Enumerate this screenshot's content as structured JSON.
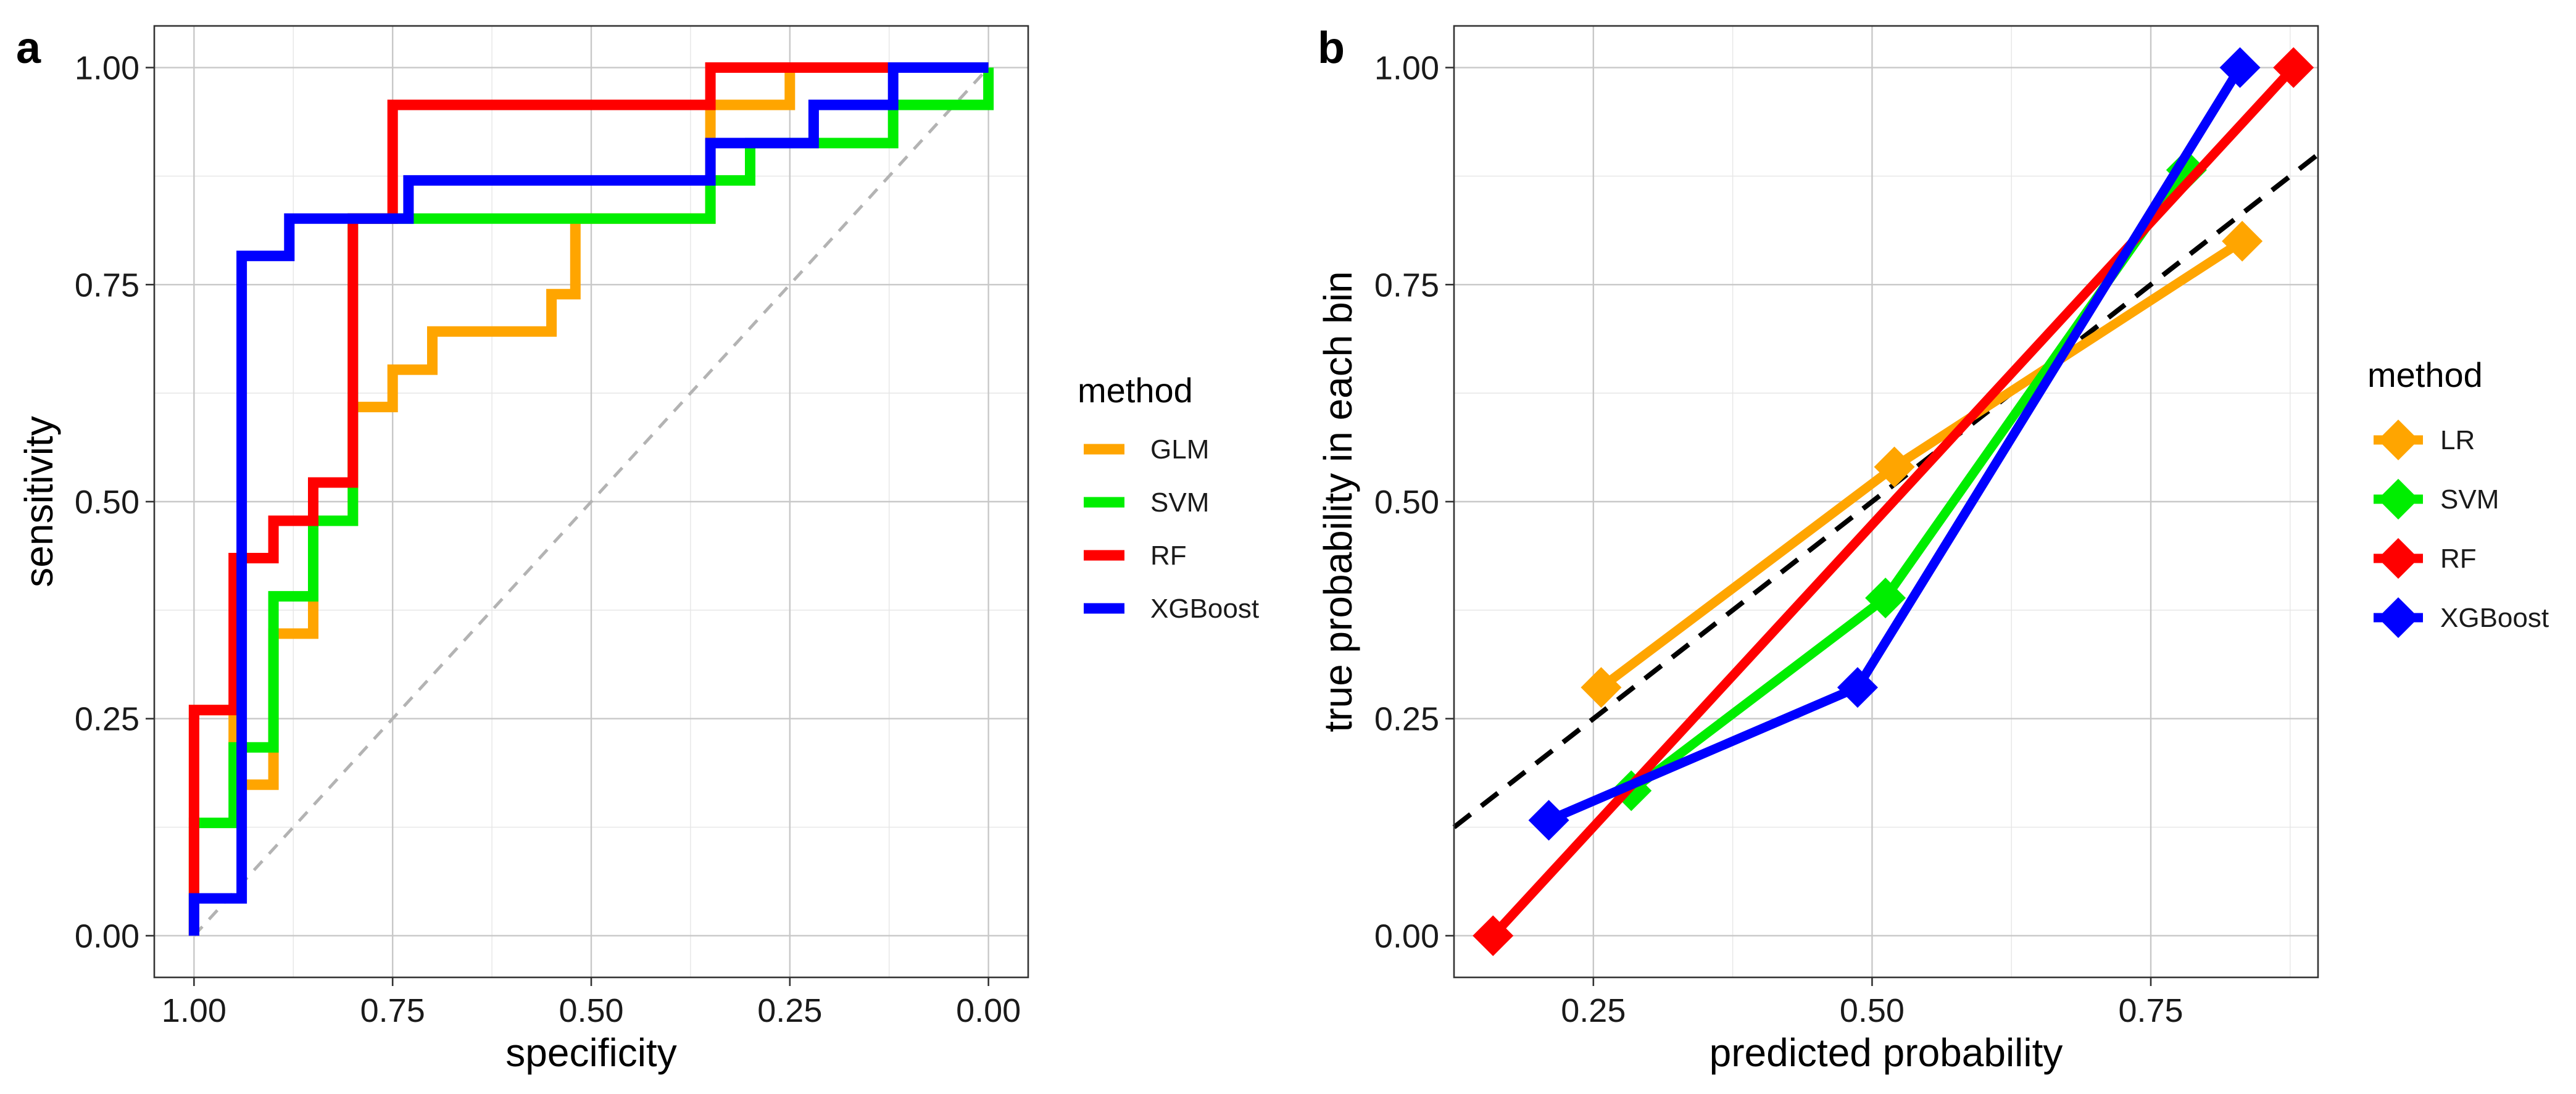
{
  "chart_data": [
    {
      "panel": "a",
      "type": "line",
      "subtype": "roc-step",
      "xlabel": "specificity",
      "ylabel": "sensitivity",
      "xlim": [
        1.0,
        0.0
      ],
      "ylim": [
        0.0,
        1.0
      ],
      "x_reversed": true,
      "x_ticks": [
        1.0,
        0.75,
        0.5,
        0.25,
        0.0
      ],
      "x_tick_labels": [
        "1.00",
        "0.75",
        "0.50",
        "0.25",
        "0.00"
      ],
      "y_ticks": [
        0.0,
        0.25,
        0.5,
        0.75,
        1.0
      ],
      "y_tick_labels": [
        "0.00",
        "0.25",
        "0.50",
        "0.75",
        "1.00"
      ],
      "grid": true,
      "reference_line": "diagonal",
      "legend_title": "method",
      "legend_position": "right",
      "series": [
        {
          "name": "GLM",
          "color": "#FFA500",
          "points": [
            [
              1.0,
              0.0
            ],
            [
              1.0,
              0.26
            ],
            [
              0.95,
              0.26
            ],
            [
              0.95,
              0.174
            ],
            [
              0.9,
              0.174
            ],
            [
              0.9,
              0.348
            ],
            [
              0.85,
              0.348
            ],
            [
              0.85,
              0.478
            ],
            [
              0.8,
              0.478
            ],
            [
              0.8,
              0.609
            ],
            [
              0.75,
              0.609
            ],
            [
              0.75,
              0.652
            ],
            [
              0.7,
              0.652
            ],
            [
              0.7,
              0.696
            ],
            [
              0.55,
              0.696
            ],
            [
              0.55,
              0.739
            ],
            [
              0.52,
              0.739
            ],
            [
              0.52,
              0.826
            ],
            [
              0.35,
              0.826
            ],
            [
              0.35,
              0.957
            ],
            [
              0.25,
              0.957
            ],
            [
              0.25,
              1.0
            ],
            [
              0.0,
              1.0
            ]
          ]
        },
        {
          "name": "SVM",
          "color": "#00EE00",
          "points": [
            [
              1.0,
              0.0
            ],
            [
              1.0,
              0.13
            ],
            [
              0.95,
              0.13
            ],
            [
              0.95,
              0.217
            ],
            [
              0.9,
              0.217
            ],
            [
              0.9,
              0.391
            ],
            [
              0.85,
              0.391
            ],
            [
              0.85,
              0.478
            ],
            [
              0.8,
              0.478
            ],
            [
              0.8,
              0.826
            ],
            [
              0.35,
              0.826
            ],
            [
              0.35,
              0.87
            ],
            [
              0.3,
              0.87
            ],
            [
              0.3,
              0.913
            ],
            [
              0.12,
              0.913
            ],
            [
              0.12,
              0.957
            ],
            [
              0.0,
              0.957
            ],
            [
              0.0,
              1.0
            ]
          ]
        },
        {
          "name": "RF",
          "color": "#FF0000",
          "points": [
            [
              1.0,
              0.0
            ],
            [
              1.0,
              0.26
            ],
            [
              0.95,
              0.26
            ],
            [
              0.95,
              0.435
            ],
            [
              0.9,
              0.435
            ],
            [
              0.9,
              0.478
            ],
            [
              0.85,
              0.478
            ],
            [
              0.85,
              0.522
            ],
            [
              0.8,
              0.522
            ],
            [
              0.8,
              0.826
            ],
            [
              0.75,
              0.826
            ],
            [
              0.75,
              0.957
            ],
            [
              0.35,
              0.957
            ],
            [
              0.35,
              1.0
            ],
            [
              0.12,
              1.0
            ]
          ]
        },
        {
          "name": "XGBoost",
          "color": "#0000FF",
          "points": [
            [
              1.0,
              0.0
            ],
            [
              1.0,
              0.043
            ],
            [
              0.94,
              0.043
            ],
            [
              0.94,
              0.783
            ],
            [
              0.88,
              0.783
            ],
            [
              0.88,
              0.826
            ],
            [
              0.73,
              0.826
            ],
            [
              0.73,
              0.87
            ],
            [
              0.35,
              0.87
            ],
            [
              0.35,
              0.913
            ],
            [
              0.22,
              0.913
            ],
            [
              0.22,
              0.957
            ],
            [
              0.12,
              0.957
            ],
            [
              0.12,
              1.0
            ],
            [
              0.0,
              1.0
            ]
          ]
        }
      ]
    },
    {
      "panel": "b",
      "type": "line",
      "subtype": "calibration",
      "xlabel": "predicted probability",
      "ylabel": "true probability in each bin",
      "xlim": [
        0.125,
        0.9
      ],
      "ylim": [
        0.0,
        1.0
      ],
      "x_ticks": [
        0.25,
        0.5,
        0.75
      ],
      "x_tick_labels": [
        "0.25",
        "0.50",
        "0.75"
      ],
      "y_ticks": [
        0.0,
        0.25,
        0.5,
        0.75,
        1.0
      ],
      "y_tick_labels": [
        "0.00",
        "0.25",
        "0.50",
        "0.75",
        "1.00"
      ],
      "grid": true,
      "reference_line": "identity (dashed black)",
      "legend_title": "method",
      "legend_position": "right",
      "marker": "diamond",
      "series": [
        {
          "name": "LR",
          "color": "#FFA500",
          "points": [
            [
              0.257,
              0.286
            ],
            [
              0.52,
              0.54
            ],
            [
              0.832,
              0.8
            ]
          ]
        },
        {
          "name": "SVM",
          "color": "#00EE00",
          "points": [
            [
              0.284,
              0.167
            ],
            [
              0.512,
              0.389
            ],
            [
              0.782,
              0.882
            ]
          ]
        },
        {
          "name": "RF",
          "color": "#FF0000",
          "points": [
            [
              0.16,
              0.0
            ],
            [
              0.878,
              1.0
            ]
          ]
        },
        {
          "name": "XGBoost",
          "color": "#0000FF",
          "points": [
            [
              0.21,
              0.133
            ],
            [
              0.487,
              0.286
            ],
            [
              0.83,
              1.0
            ]
          ]
        }
      ]
    }
  ]
}
